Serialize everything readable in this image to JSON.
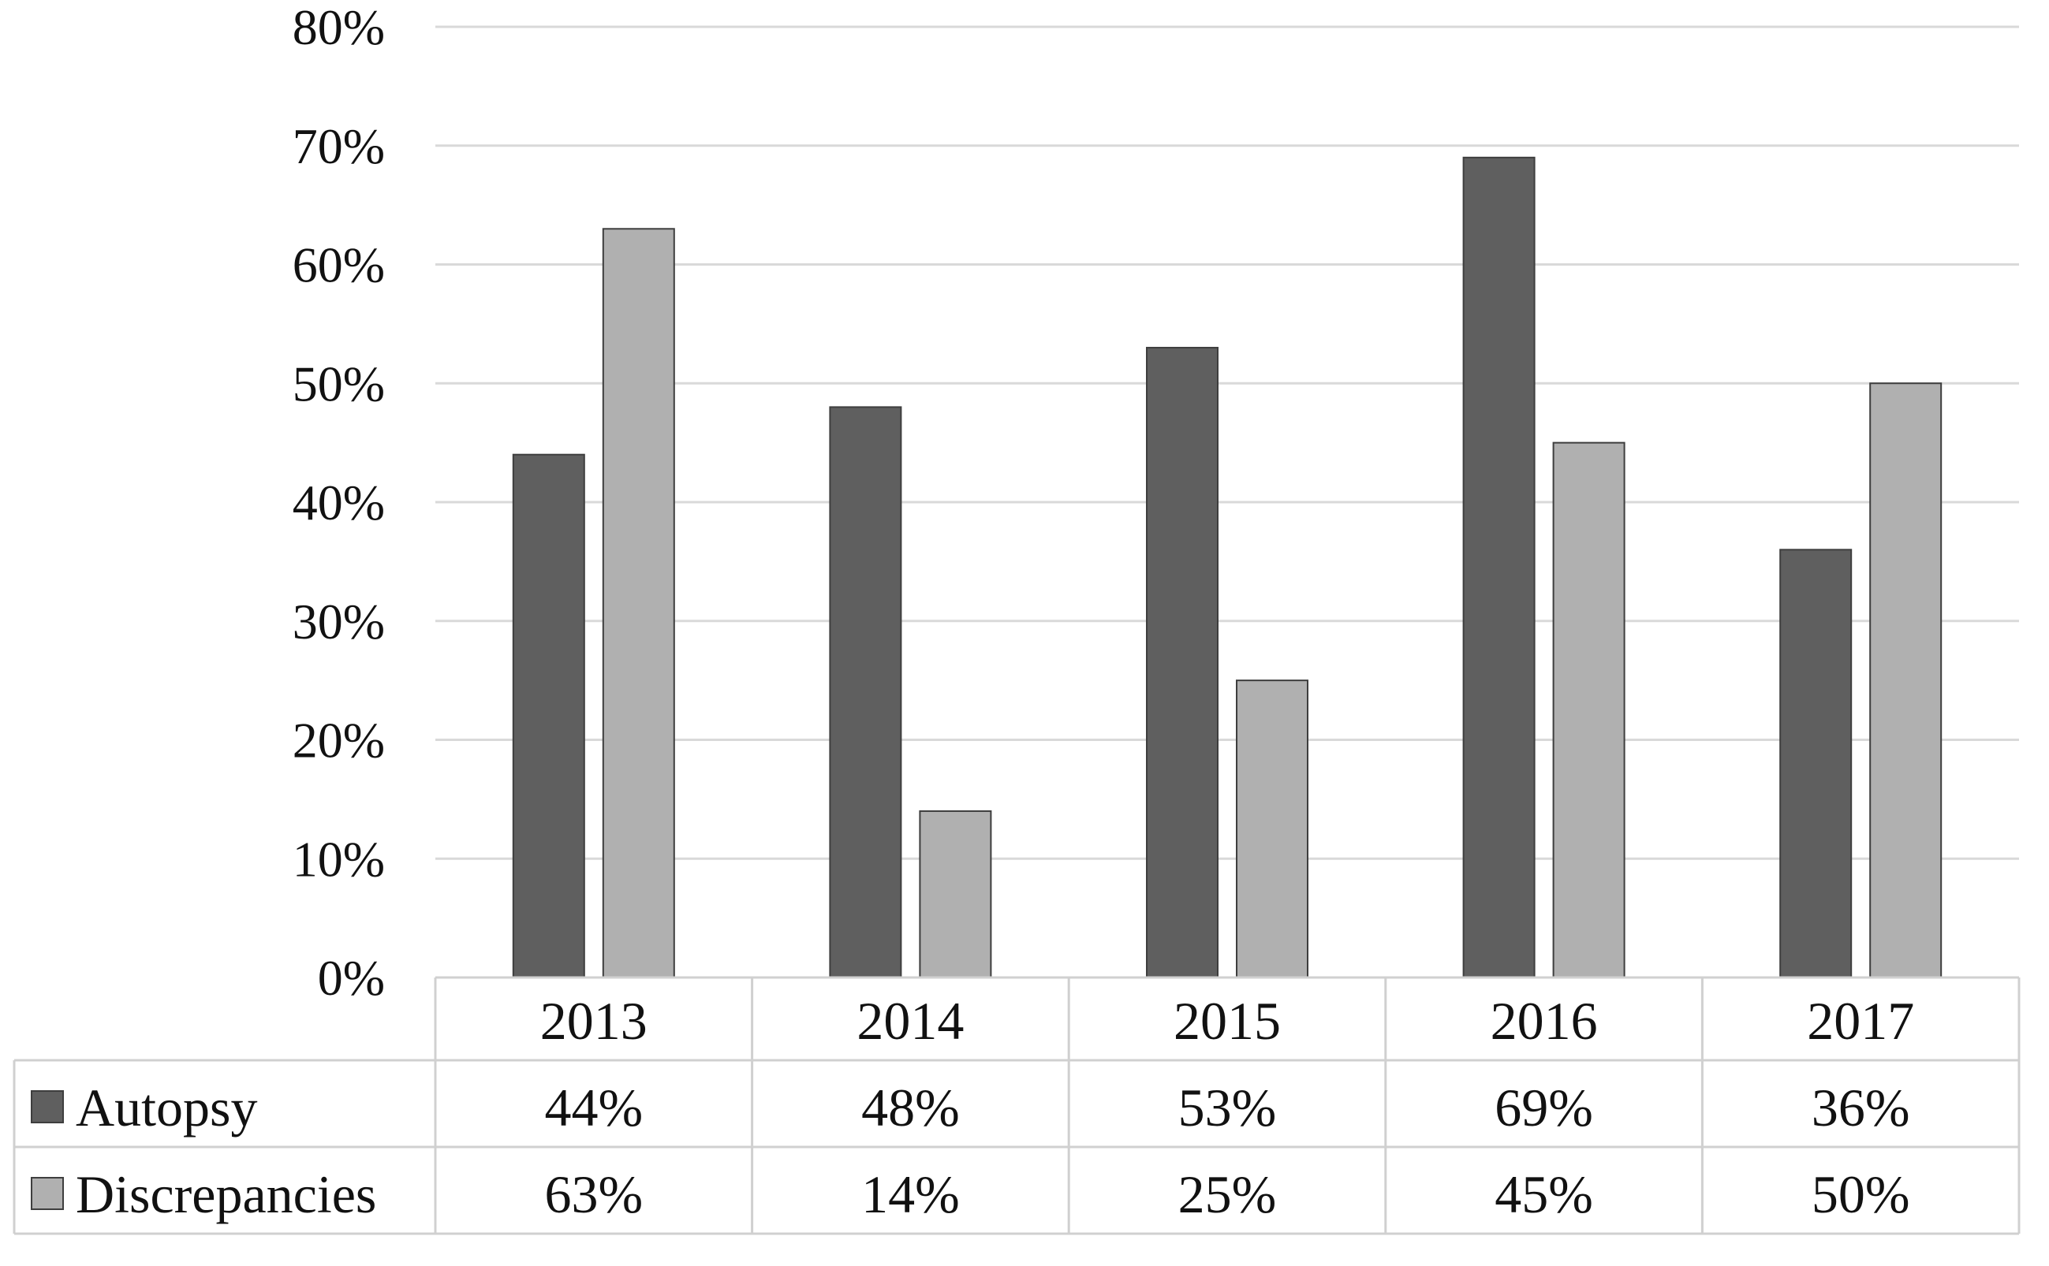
{
  "chart_data": {
    "type": "bar",
    "categories": [
      "2013",
      "2014",
      "2015",
      "2016",
      "2017"
    ],
    "series": [
      {
        "name": "Autopsy",
        "values": [
          44,
          48,
          53,
          69,
          36
        ],
        "labels": [
          "44%",
          "48%",
          "53%",
          "69%",
          "36%"
        ],
        "color": "#5f5f5f"
      },
      {
        "name": "Discrepancies",
        "values": [
          63,
          14,
          25,
          45,
          50
        ],
        "labels": [
          "63%",
          "14%",
          "25%",
          "45%",
          "50%"
        ],
        "color": "#b0b0b0"
      }
    ],
    "ylim": [
      0,
      80
    ],
    "yticks": [
      "0%",
      "10%",
      "20%",
      "30%",
      "40%",
      "50%",
      "60%",
      "70%",
      "80%"
    ],
    "grid": true,
    "legend": "data-table-below",
    "gridline_color": "#d9d9d9",
    "table_border_color": "#d0d0d0"
  }
}
